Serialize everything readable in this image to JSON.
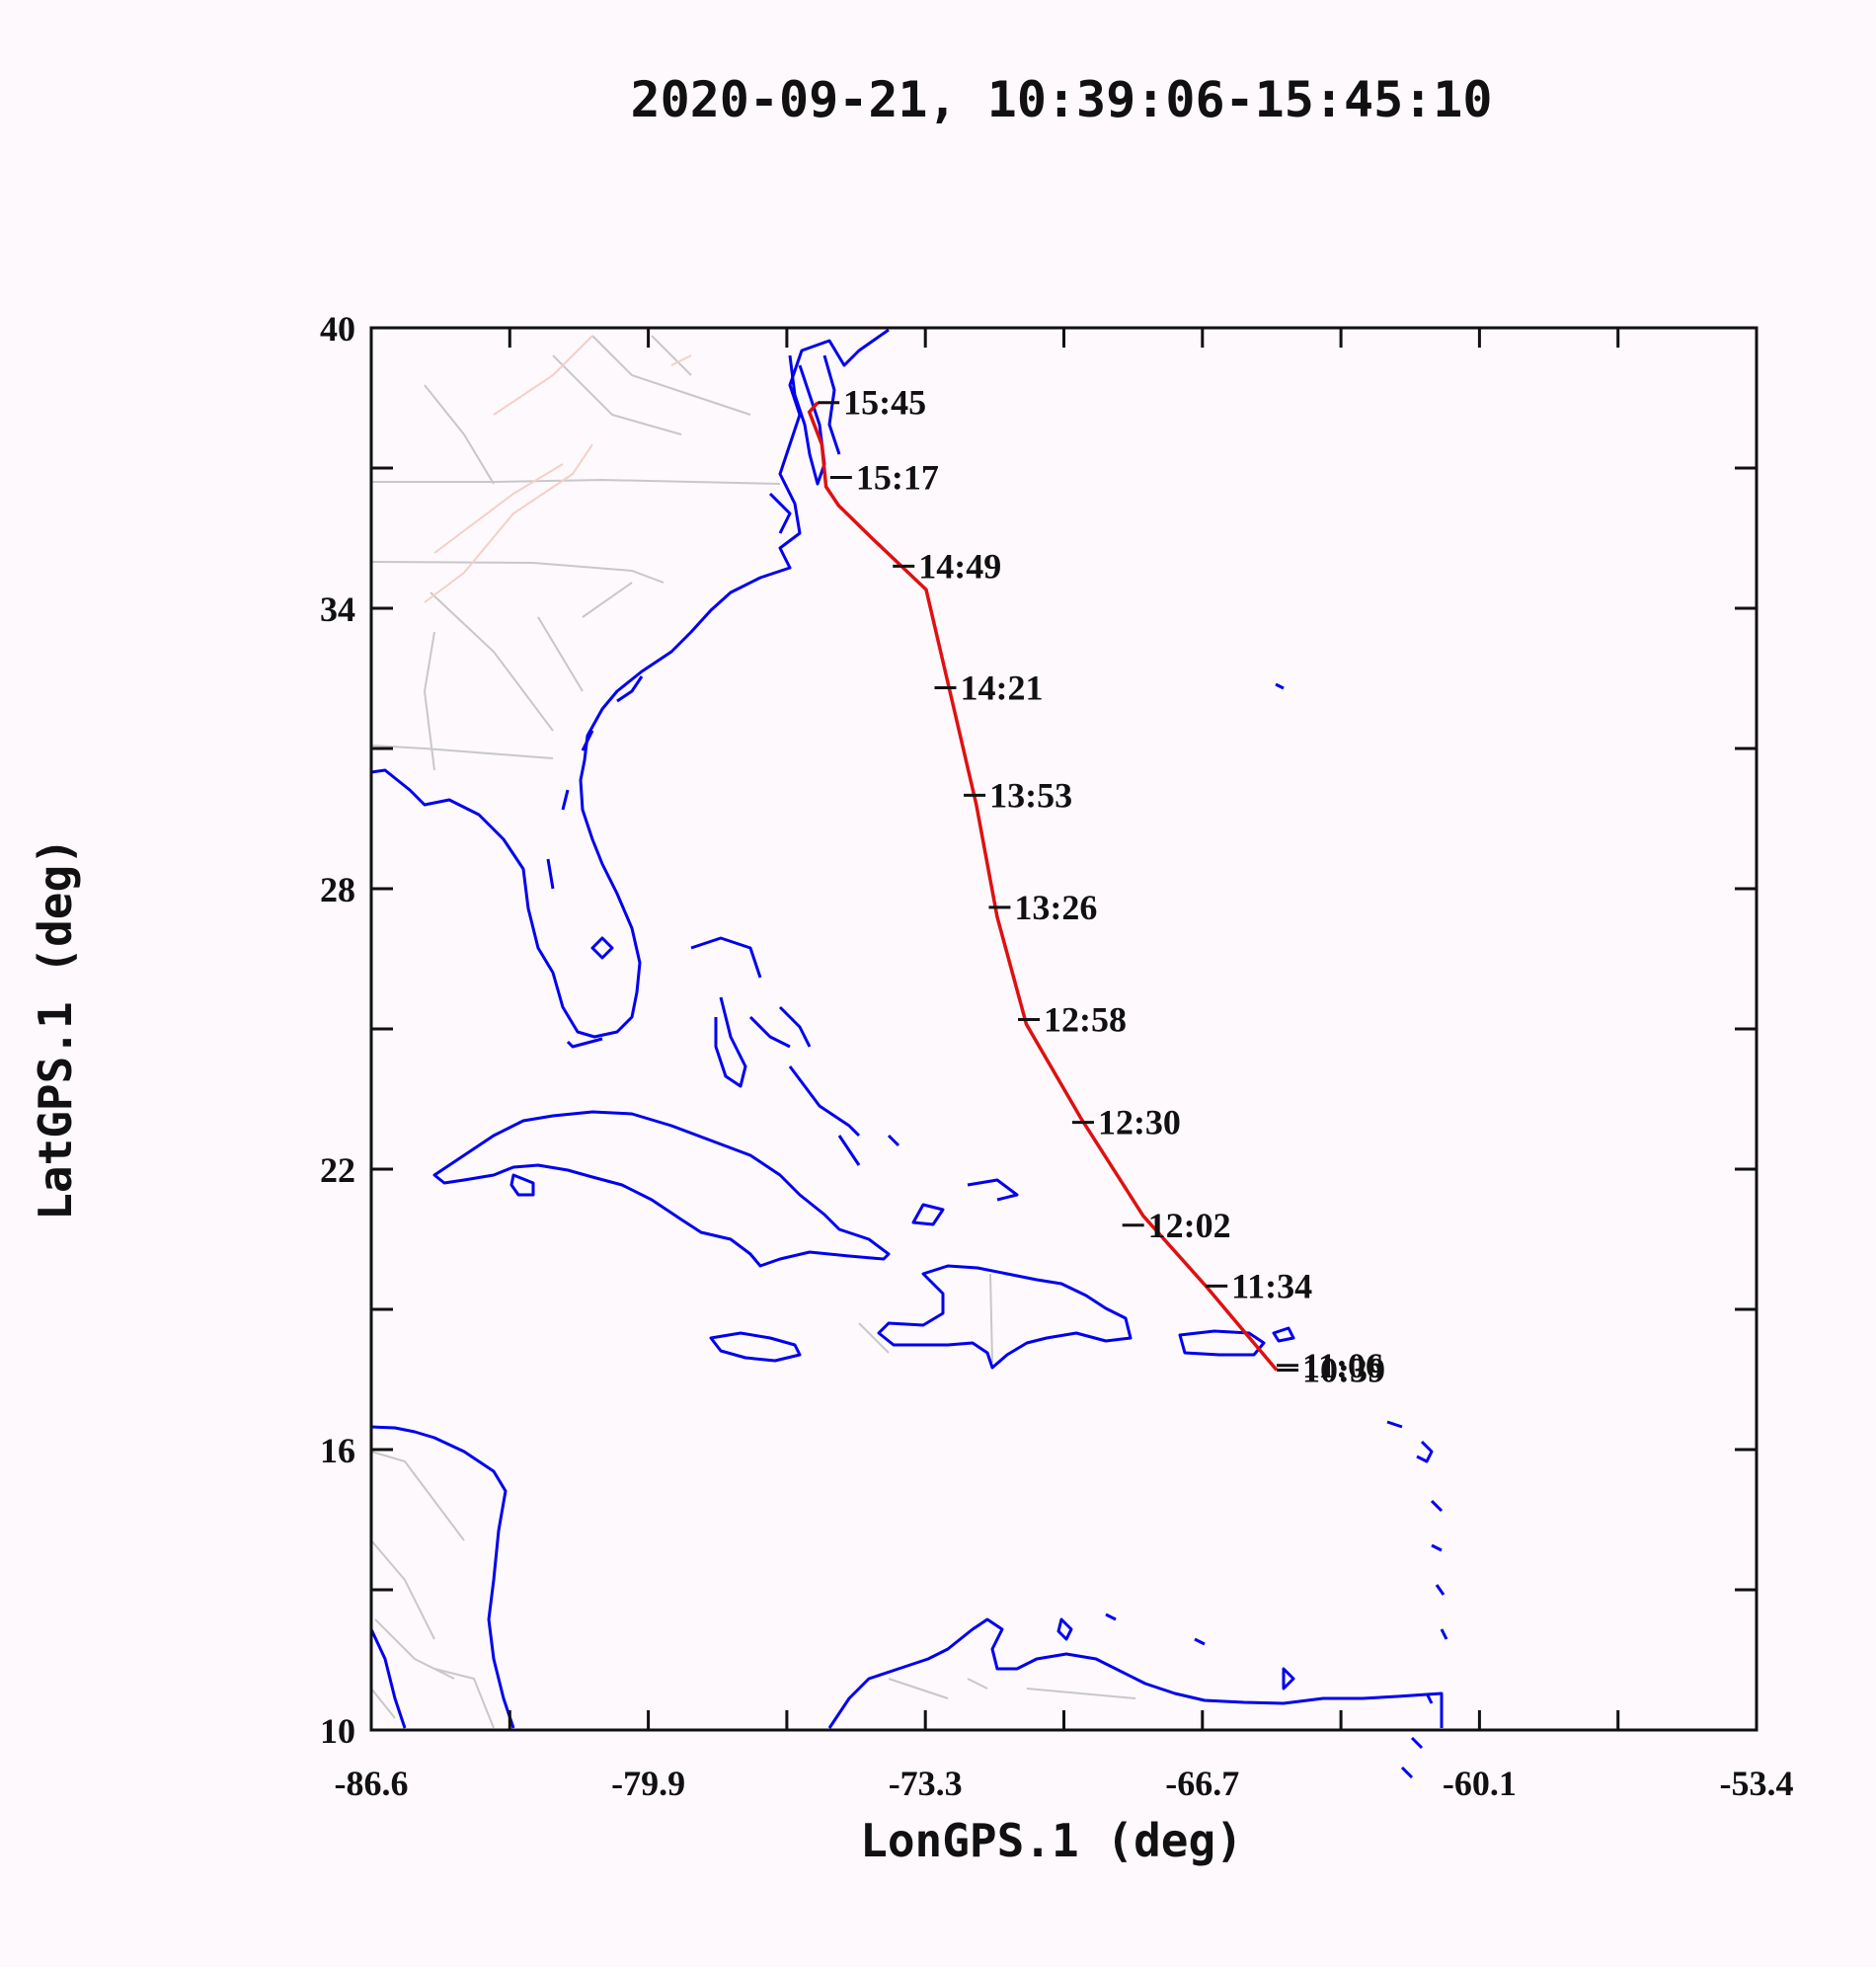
{
  "title": "2020-09-21, 10:39:06-15:45:10",
  "x_axis": {
    "label": "LonGPS.1 (deg)",
    "range": [
      -86.6,
      -53.4
    ],
    "tick_labels": [
      "-86.6",
      "-79.9",
      "-73.3",
      "-66.7",
      "-60.1",
      "-53.4"
    ]
  },
  "y_axis": {
    "label": "LatGPS.1 (deg)",
    "range": [
      10,
      40
    ],
    "tick_labels": [
      "40",
      "34",
      "28",
      "22",
      "16",
      "10"
    ]
  },
  "colors": {
    "track": "#e01010",
    "coastline": "#0000ee",
    "borders": "#c8c8c8",
    "background": "#fdf9fd"
  },
  "flight_track": [
    {
      "lon": -64.9,
      "lat": 17.7
    },
    {
      "lon": -66.6,
      "lat": 19.5
    },
    {
      "lon": -68.1,
      "lat": 21.0
    },
    {
      "lon": -69.6,
      "lat": 23.1
    },
    {
      "lon": -70.9,
      "lat": 25.1
    },
    {
      "lon": -71.6,
      "lat": 27.4
    },
    {
      "lon": -72.1,
      "lat": 29.8
    },
    {
      "lon": -72.7,
      "lat": 32.1
    },
    {
      "lon": -73.3,
      "lat": 34.4
    },
    {
      "lon": -74.6,
      "lat": 35.5
    },
    {
      "lon": -75.4,
      "lat": 36.2
    },
    {
      "lon": -75.7,
      "lat": 36.6
    },
    {
      "lon": -75.8,
      "lat": 37.5
    },
    {
      "lon": -76.1,
      "lat": 38.2
    },
    {
      "lon": -75.9,
      "lat": 38.4
    }
  ],
  "time_labels": [
    {
      "text": "10:39",
      "lon": -64.9,
      "lat": 17.7
    },
    {
      "text": "11:06",
      "lon": -64.9,
      "lat": 17.8
    },
    {
      "text": "11:34",
      "lon": -66.6,
      "lat": 19.5
    },
    {
      "text": "12:02",
      "lon": -68.6,
      "lat": 20.8
    },
    {
      "text": "12:30",
      "lon": -69.8,
      "lat": 23.0
    },
    {
      "text": "12:58",
      "lon": -71.1,
      "lat": 25.2
    },
    {
      "text": "13:26",
      "lon": -71.8,
      "lat": 27.6
    },
    {
      "text": "13:53",
      "lon": -72.4,
      "lat": 30.0
    },
    {
      "text": "14:21",
      "lon": -73.1,
      "lat": 32.3
    },
    {
      "text": "14:49",
      "lon": -74.1,
      "lat": 34.9
    },
    {
      "text": "15:17",
      "lon": -75.6,
      "lat": 36.8
    },
    {
      "text": "15:45",
      "lon": -75.9,
      "lat": 38.4
    }
  ]
}
